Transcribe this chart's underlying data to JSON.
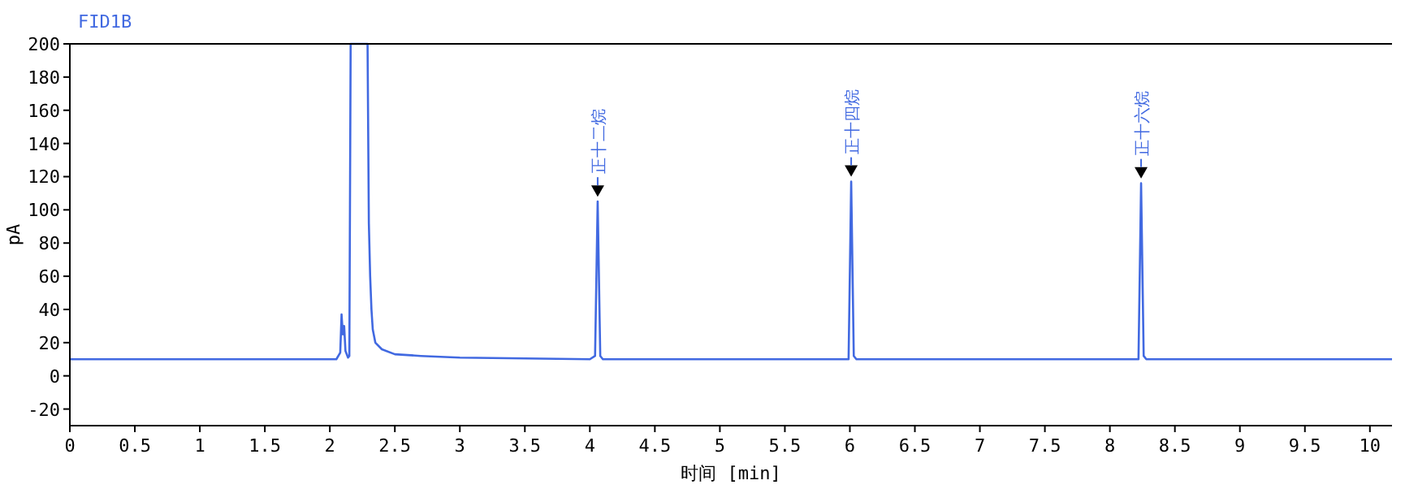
{
  "chart_data": {
    "type": "line",
    "title": "FID1B",
    "xlabel": "时间 [min]",
    "ylabel": "pA",
    "xlim": [
      0,
      10.17
    ],
    "xticks": [
      0,
      0.5,
      1,
      1.5,
      2,
      2.5,
      3,
      3.5,
      4,
      4.5,
      5,
      5.5,
      6,
      6.5,
      7,
      7.5,
      8,
      8.5,
      9,
      9.5,
      10
    ],
    "ylim": [
      -30,
      200
    ],
    "yticks": [
      -20,
      0,
      20,
      40,
      60,
      80,
      100,
      120,
      140,
      160,
      180,
      200
    ],
    "grid": false,
    "marker": "none",
    "line_style": "solid",
    "series": [
      {
        "color": "#4169e1",
        "x": [
          0,
          2.05,
          2.08,
          2.09,
          2.1,
          2.11,
          2.12,
          2.14,
          2.15,
          2.16,
          2.29,
          2.3,
          2.31,
          2.32,
          2.33,
          2.35,
          2.4,
          2.5,
          2.7,
          3.0,
          4.0,
          4.04,
          4.06,
          4.08,
          4.1,
          5.99,
          6.01,
          6.03,
          6.05,
          8.22,
          8.24,
          8.26,
          8.28,
          10.17
        ],
        "values": [
          10,
          10,
          14,
          37,
          25,
          30,
          15,
          11,
          12,
          200,
          200,
          92,
          60,
          40,
          28,
          20,
          16,
          13,
          12,
          11,
          10,
          12,
          105,
          12,
          10,
          10,
          117,
          12,
          10,
          10,
          116,
          12,
          10,
          10
        ]
      }
    ],
    "annotations": [
      {
        "text": "正十二烷",
        "x": 4.06,
        "y": 105
      },
      {
        "text": "正十四烷",
        "x": 6.01,
        "y": 117
      },
      {
        "text": "正十六烷",
        "x": 8.24,
        "y": 116
      }
    ]
  }
}
